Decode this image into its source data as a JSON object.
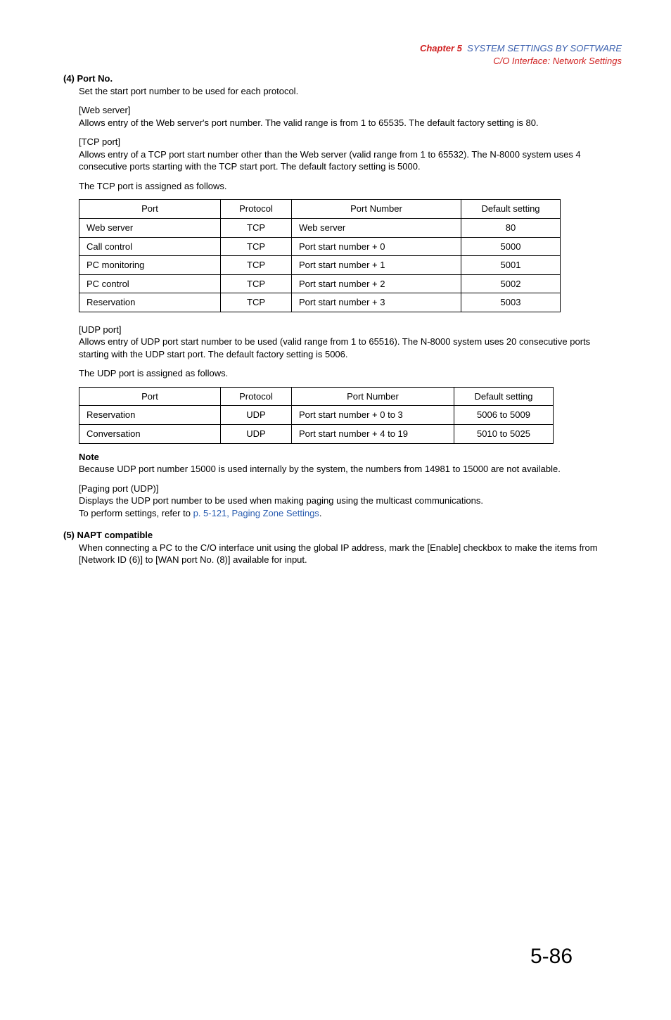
{
  "header": {
    "chapter_label": "Chapter 5",
    "chapter_title": "SYSTEM SETTINGS BY SOFTWARE",
    "sub_title": "C/O Interface: Network Settings"
  },
  "section4": {
    "heading": "(4) Port No.",
    "intro": "Set the start port number to be used for each protocol.",
    "web_server_label": "[Web server]",
    "web_server_text": "Allows entry of the Web server's port number. The valid range is from 1 to 65535. The default factory setting is 80.",
    "tcp_port_label": "[TCP port]",
    "tcp_port_text": "Allows entry of a TCP port start number other than the Web server (valid range from 1 to 65532). The N-8000 system uses 4 consecutive ports starting with the TCP start port. The default factory setting is 5000.",
    "tcp_assigned": "The TCP port is assigned as follows.",
    "udp_port_label": "[UDP port]",
    "udp_port_text": "Allows entry of UDP port start number to be used (valid range from 1 to 65516). The N-8000 system uses 20 consecutive ports starting with the UDP start port. The default factory setting is 5006.",
    "udp_assigned": "The UDP port is assigned as follows.",
    "note_label": "Note",
    "note_text": "Because UDP port number 15000 is used internally by the system, the numbers from 14981 to 15000 are not available.",
    "paging_label": "[Paging port (UDP)]",
    "paging_text": "Displays the UDP port number to be used when making paging using the multicast communications.",
    "paging_ref_prefix": "To perform settings, refer to ",
    "paging_ref_link": "p. 5-121, Paging Zone Settings",
    "paging_ref_suffix": "."
  },
  "table_headers": {
    "port": "Port",
    "protocol": "Protocol",
    "number": "Port Number",
    "default": "Default setting"
  },
  "tcp_table": {
    "col_widths": {
      "port": 180,
      "protocol": 80,
      "number": 220,
      "default": 120
    },
    "rows": [
      {
        "port": "Web server",
        "protocol": "TCP",
        "number": "Web server",
        "default": "80"
      },
      {
        "port": "Call control",
        "protocol": "TCP",
        "number": "Port start number + 0",
        "default": "5000"
      },
      {
        "port": "PC monitoring",
        "protocol": "TCP",
        "number": "Port start number + 1",
        "default": "5001"
      },
      {
        "port": "PC control",
        "protocol": "TCP",
        "number": "Port start number + 2",
        "default": "5002"
      },
      {
        "port": "Reservation",
        "protocol": "TCP",
        "number": "Port start number + 3",
        "default": "5003"
      }
    ]
  },
  "udp_table": {
    "col_widths": {
      "port": 180,
      "protocol": 80,
      "number": 210,
      "default": 120
    },
    "rows": [
      {
        "port": "Reservation",
        "protocol": "UDP",
        "number": "Port start number + 0 to 3",
        "default": "5006 to 5009"
      },
      {
        "port": "Conversation",
        "protocol": "UDP",
        "number": "Port start number + 4 to 19",
        "default": "5010 to 5025"
      }
    ]
  },
  "section5": {
    "heading": "(5) NAPT compatible",
    "text": "When connecting a PC to the C/O interface unit using the global IP address, mark the [Enable] checkbox to make the items from [Network ID (6)] to [WAN port No. (8)] available for input."
  },
  "page_number": "5-86"
}
